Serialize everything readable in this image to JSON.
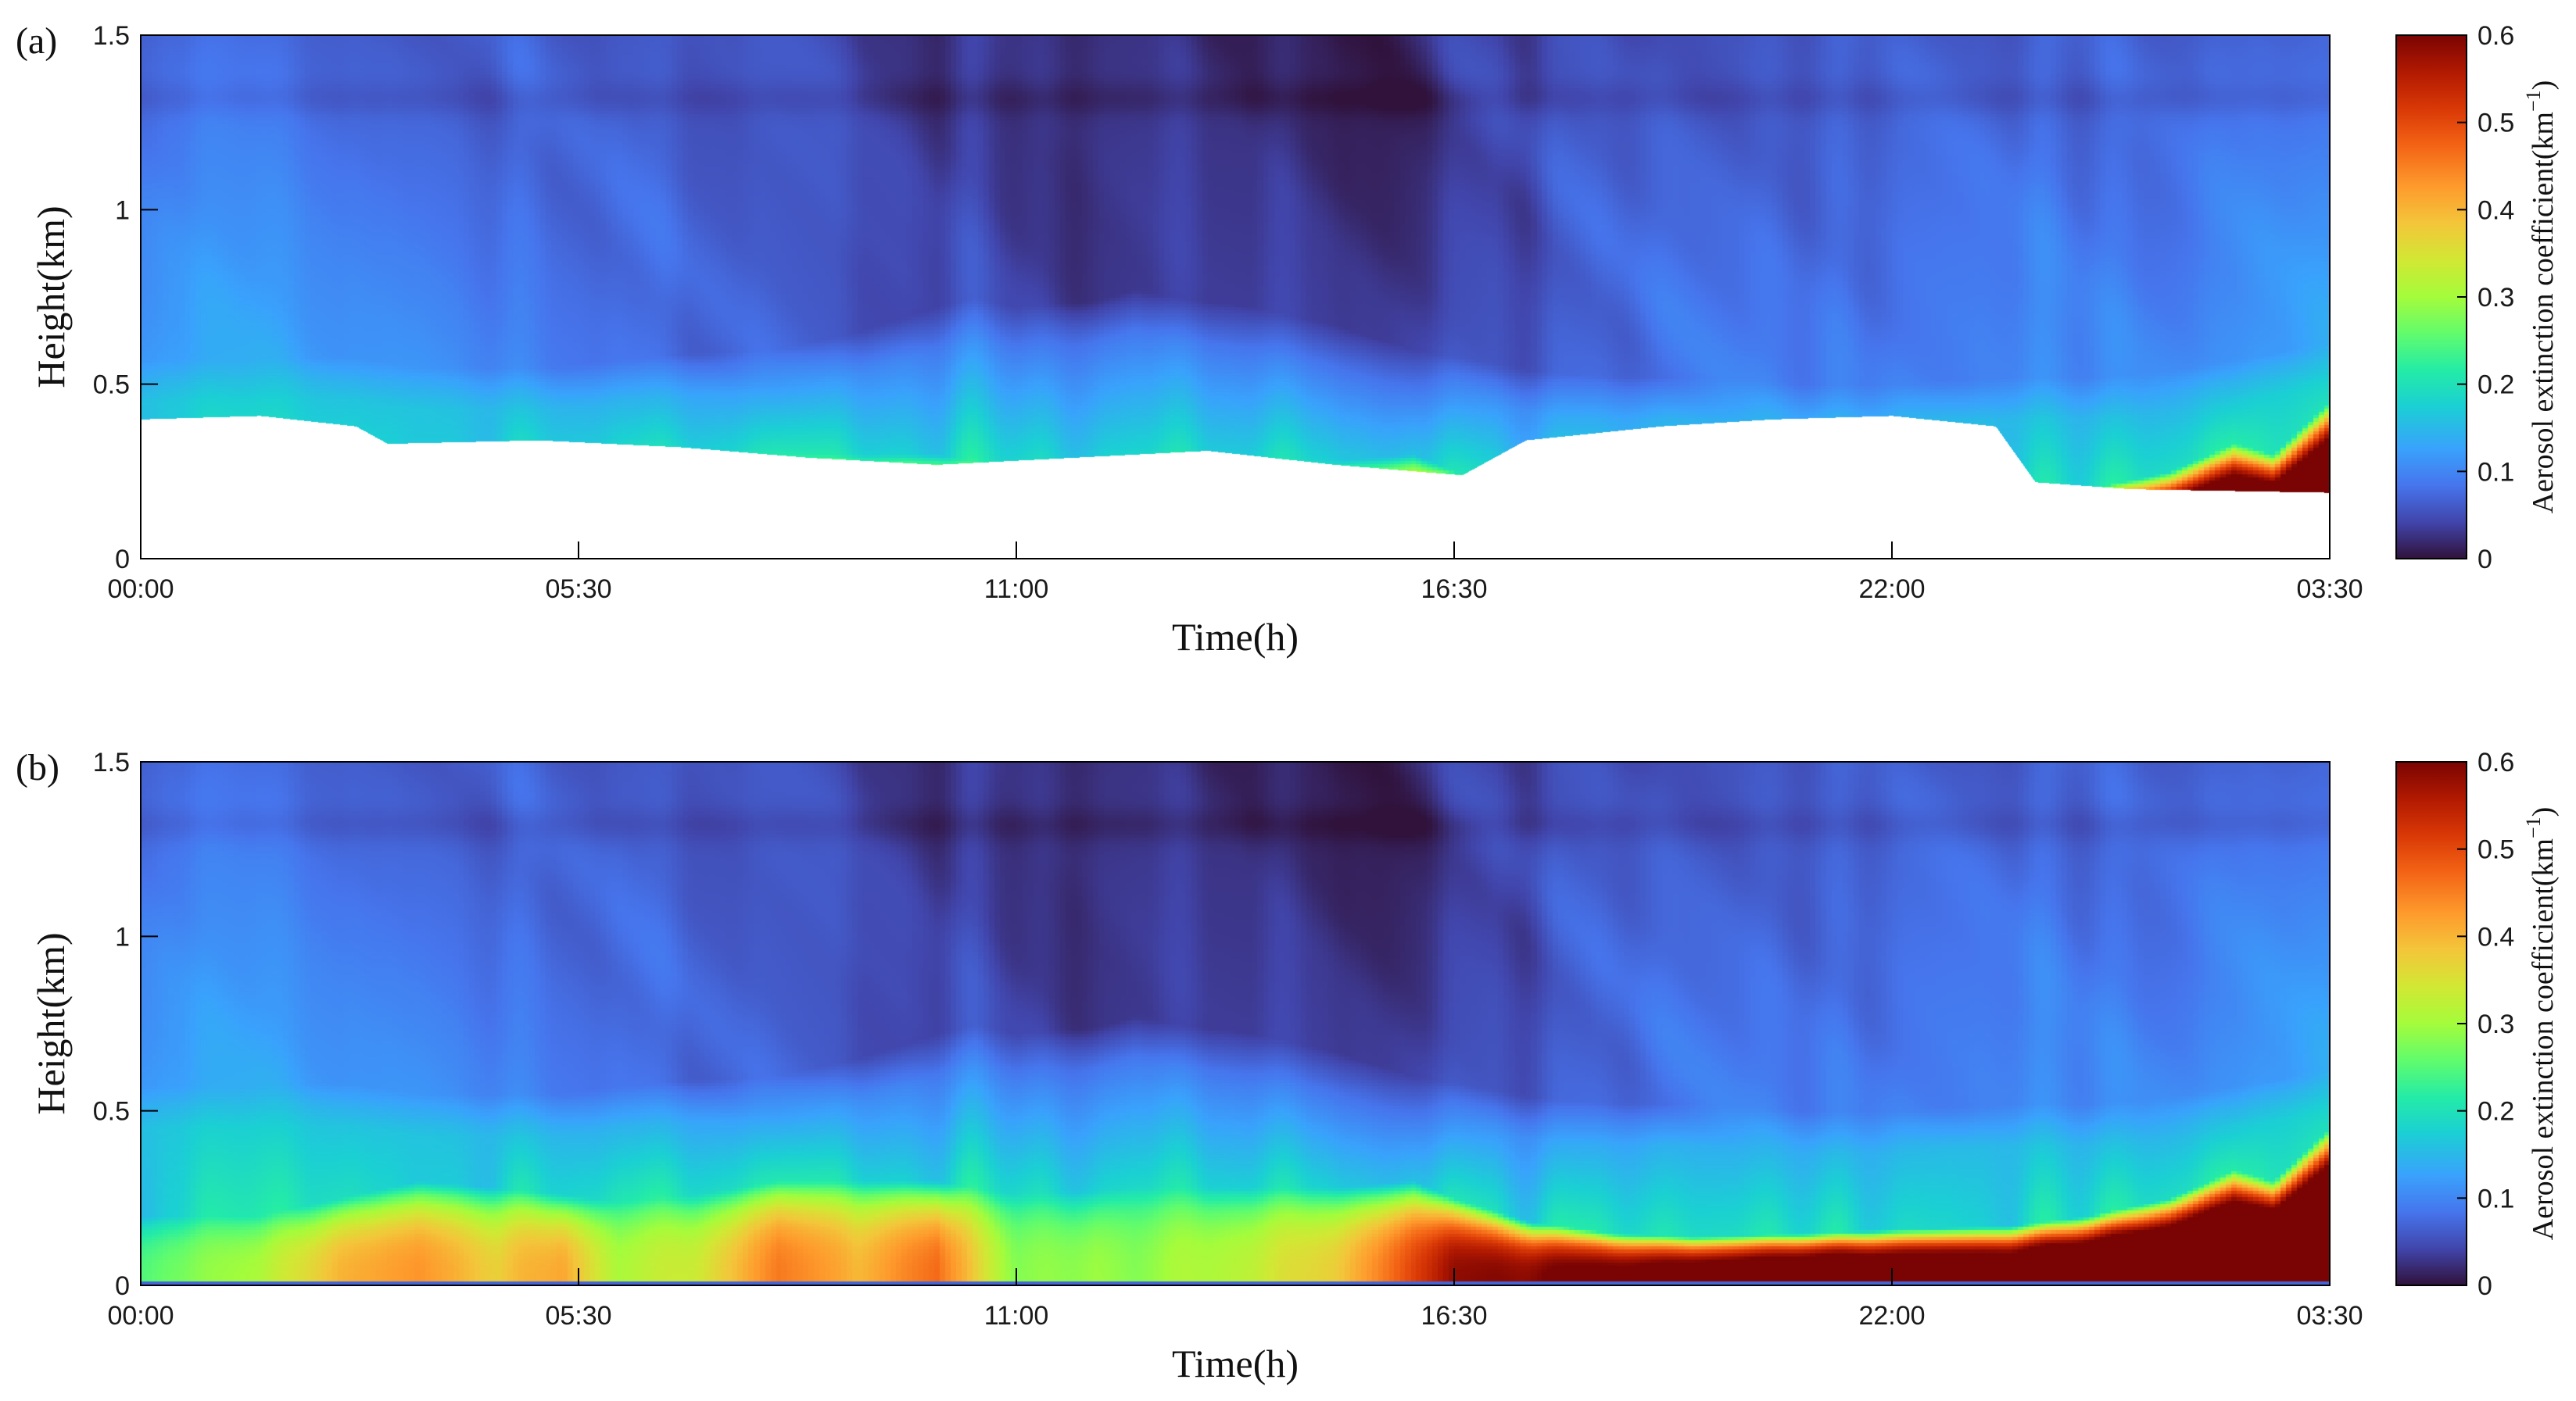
{
  "chart_data": [
    {
      "type": "heatmap",
      "panel_label": "(a)",
      "xlabel": "Time(h)",
      "ylabel": "Height(km)",
      "x_ticks": [
        "00:00",
        "05:30",
        "11:00",
        "16:30",
        "22:00",
        "03:30"
      ],
      "y_ticks": [
        "0",
        "0.5",
        "1",
        "1.5"
      ],
      "ylim": [
        0,
        1.5
      ],
      "colorbar": {
        "label": "Aerosol extinction coefficient(km",
        "label_exp": "−1",
        "label_close": ")",
        "ticks": [
          "0",
          "0.1",
          "0.2",
          "0.3",
          "0.4",
          "0.5",
          "0.6"
        ],
        "range": [
          0,
          0.6
        ],
        "colormap": "turbo"
      },
      "blank_below_height_km": [
        [
          0.0,
          0.4
        ],
        [
          1.5,
          0.41
        ],
        [
          2.7,
          0.38
        ],
        [
          3.1,
          0.33
        ],
        [
          5.0,
          0.34
        ],
        [
          6.8,
          0.32
        ],
        [
          8.4,
          0.29
        ],
        [
          10.0,
          0.27
        ],
        [
          11.7,
          0.29
        ],
        [
          13.4,
          0.31
        ],
        [
          15.0,
          0.27
        ],
        [
          16.6,
          0.24
        ],
        [
          17.4,
          0.34
        ],
        [
          19.1,
          0.38
        ],
        [
          20.5,
          0.4
        ],
        [
          22.0,
          0.41
        ],
        [
          23.3,
          0.38
        ],
        [
          23.8,
          0.22
        ],
        [
          25.0,
          0.2
        ],
        [
          27.5,
          0.19
        ]
      ]
    },
    {
      "type": "heatmap",
      "panel_label": "(b)",
      "xlabel": "Time(h)",
      "ylabel": "Height(km)",
      "x_ticks": [
        "00:00",
        "05:30",
        "11:00",
        "16:30",
        "22:00",
        "03:30"
      ],
      "y_ticks": [
        "0",
        "0.5",
        "1",
        "1.5"
      ],
      "ylim": [
        0,
        1.5
      ],
      "colorbar": {
        "label": "Aerosol extinction coefficient(km",
        "label_exp": "−1",
        "label_close": ")",
        "ticks": [
          "0",
          "0.1",
          "0.2",
          "0.3",
          "0.4",
          "0.5",
          "0.6"
        ],
        "range": [
          0,
          0.6
        ],
        "colormap": "turbo"
      },
      "blank_below_height_km": []
    }
  ],
  "field_model": {
    "x_hours": [
      0,
      1.5,
      2.5,
      3.5,
      4.5,
      5.3,
      6.0,
      7.0,
      8.0,
      9.0,
      10.0,
      10.5,
      11.0,
      12.0,
      12.5,
      13.0,
      14.0,
      15.0,
      16.0,
      16.5,
      17.5,
      18.5,
      19.5,
      21.0,
      22.0,
      23.5,
      24.5,
      25.5,
      26.3,
      26.8,
      27.5
    ],
    "upper_level_value": [
      0.11,
      0.11,
      0.1,
      0.11,
      0.1,
      0.09,
      0.08,
      0.07,
      0.06,
      0.05,
      0.04,
      0.04,
      0.03,
      0.03,
      0.03,
      0.03,
      0.03,
      0.03,
      0.04,
      0.05,
      0.06,
      0.07,
      0.08,
      0.08,
      0.09,
      0.1,
      0.09,
      0.09,
      0.1,
      0.11,
      0.12
    ],
    "boundary_layer_top_km": [
      0.45,
      0.45,
      0.46,
      0.43,
      0.43,
      0.43,
      0.45,
      0.47,
      0.48,
      0.53,
      0.6,
      0.63,
      0.6,
      0.62,
      0.65,
      0.63,
      0.6,
      0.55,
      0.48,
      0.46,
      0.42,
      0.4,
      0.4,
      0.38,
      0.38,
      0.4,
      0.4,
      0.42,
      0.45,
      0.47,
      0.5
    ],
    "near_surface_value": [
      0.26,
      0.3,
      0.4,
      0.44,
      0.38,
      0.42,
      0.3,
      0.34,
      0.45,
      0.4,
      0.48,
      0.36,
      0.28,
      0.3,
      0.28,
      0.3,
      0.33,
      0.38,
      0.52,
      0.58,
      0.6,
      0.62,
      0.65,
      0.7,
      0.7,
      0.7,
      0.75,
      0.8,
      0.85,
      0.85,
      0.95
    ],
    "surface_layer_depth_km": [
      0.2,
      0.2,
      0.25,
      0.3,
      0.28,
      0.26,
      0.24,
      0.26,
      0.3,
      0.3,
      0.3,
      0.28,
      0.26,
      0.27,
      0.28,
      0.28,
      0.28,
      0.28,
      0.3,
      0.25,
      0.18,
      0.15,
      0.14,
      0.15,
      0.16,
      0.17,
      0.2,
      0.25,
      0.33,
      0.3,
      0.45
    ]
  }
}
